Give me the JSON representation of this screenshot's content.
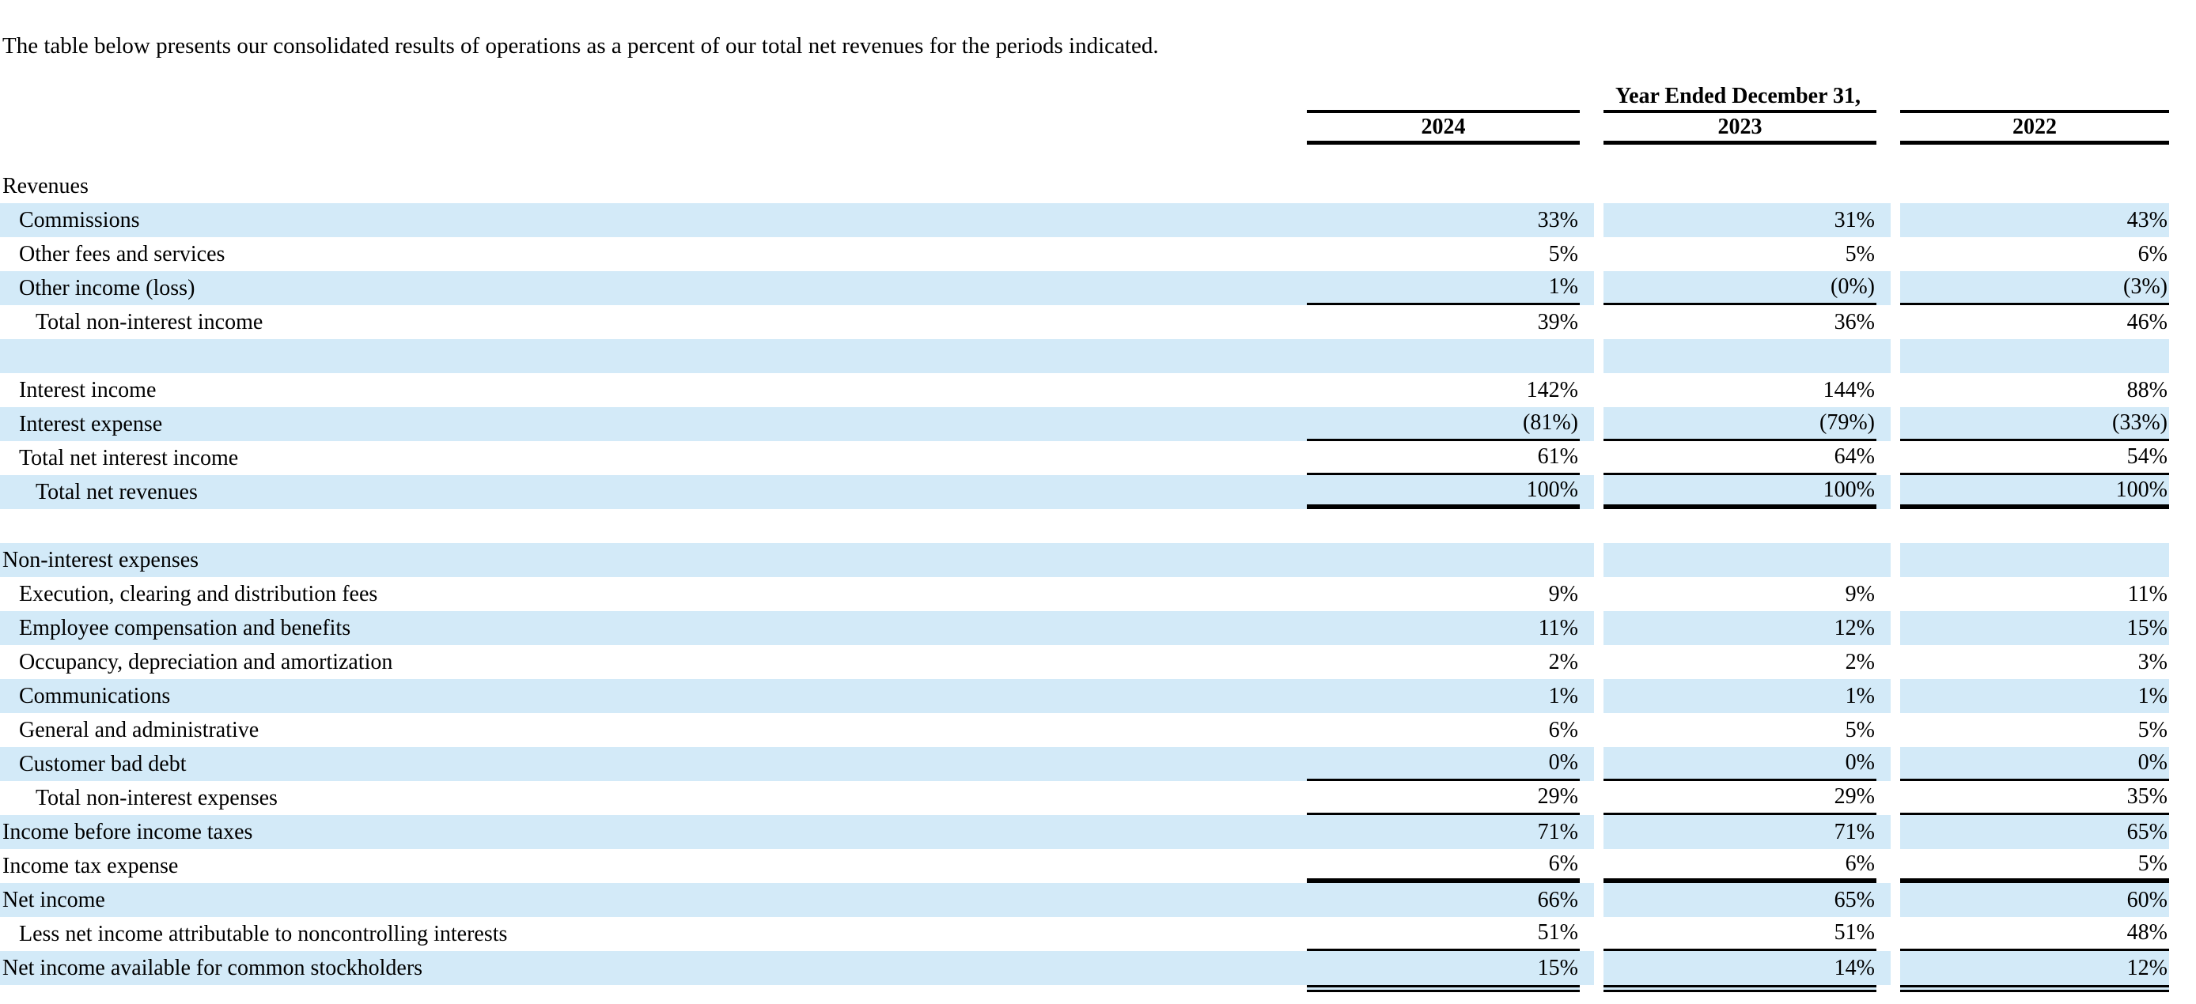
{
  "intro": "The table below presents our consolidated results of operations as a percent of our total net revenues for the periods indicated.",
  "colors": {
    "row_shade": "#d3eaf8",
    "rule": "#000000"
  },
  "table": {
    "header": {
      "title": "Year Ended December 31,",
      "years": [
        "2024",
        "2023",
        "2022"
      ]
    },
    "rows": [
      {
        "label": "Revenues",
        "indent": 0,
        "shaded": false,
        "values": [
          "",
          "",
          ""
        ],
        "border": "none"
      },
      {
        "label": "Commissions",
        "indent": 1,
        "shaded": true,
        "values": [
          "33%",
          "31%",
          "43%"
        ],
        "border": "none"
      },
      {
        "label": "Other fees and services",
        "indent": 1,
        "shaded": false,
        "values": [
          "5%",
          "5%",
          "6%"
        ],
        "border": "none"
      },
      {
        "label": "Other income (loss)",
        "indent": 1,
        "shaded": true,
        "values": [
          "1%",
          "(0%)",
          "(3%)"
        ],
        "border": "thin"
      },
      {
        "label": "Total non-interest income",
        "indent": 2,
        "shaded": false,
        "values": [
          "39%",
          "36%",
          "46%"
        ],
        "border": "none"
      },
      {
        "label": "",
        "indent": 0,
        "shaded": true,
        "values": [
          "",
          "",
          ""
        ],
        "border": "none"
      },
      {
        "label": "Interest income",
        "indent": 1,
        "shaded": false,
        "values": [
          "142%",
          "144%",
          "88%"
        ],
        "border": "none"
      },
      {
        "label": "Interest expense",
        "indent": 1,
        "shaded": true,
        "values": [
          "(81%)",
          "(79%)",
          "(33%)"
        ],
        "border": "thin"
      },
      {
        "label": "Total net interest income",
        "indent": 1,
        "shaded": false,
        "values": [
          "61%",
          "64%",
          "54%"
        ],
        "border": "thin"
      },
      {
        "label": "Total net revenues",
        "indent": 2,
        "shaded": true,
        "values": [
          "100%",
          "100%",
          "100%"
        ],
        "border": "thick"
      },
      {
        "label": "",
        "indent": 0,
        "shaded": false,
        "values": [
          "",
          "",
          ""
        ],
        "border": "none"
      },
      {
        "label": "Non-interest expenses",
        "indent": 0,
        "shaded": true,
        "values": [
          "",
          "",
          ""
        ],
        "border": "none"
      },
      {
        "label": "Execution, clearing and distribution fees",
        "indent": 1,
        "shaded": false,
        "values": [
          "9%",
          "9%",
          "11%"
        ],
        "border": "none"
      },
      {
        "label": "Employee compensation and benefits",
        "indent": 1,
        "shaded": true,
        "values": [
          "11%",
          "12%",
          "15%"
        ],
        "border": "none"
      },
      {
        "label": "Occupancy, depreciation and amortization",
        "indent": 1,
        "shaded": false,
        "values": [
          "2%",
          "2%",
          "3%"
        ],
        "border": "none"
      },
      {
        "label": "Communications",
        "indent": 1,
        "shaded": true,
        "values": [
          "1%",
          "1%",
          "1%"
        ],
        "border": "none"
      },
      {
        "label": "General and administrative",
        "indent": 1,
        "shaded": false,
        "values": [
          "6%",
          "5%",
          "5%"
        ],
        "border": "none"
      },
      {
        "label": "Customer bad debt",
        "indent": 1,
        "shaded": true,
        "values": [
          "0%",
          "0%",
          "0%"
        ],
        "border": "thin"
      },
      {
        "label": "Total non-interest expenses",
        "indent": 2,
        "shaded": false,
        "values": [
          "29%",
          "29%",
          "35%"
        ],
        "border": "thin"
      },
      {
        "label": "Income before income taxes",
        "indent": 0,
        "shaded": true,
        "values": [
          "71%",
          "71%",
          "65%"
        ],
        "border": "none"
      },
      {
        "label": "Income tax expense",
        "indent": 0,
        "shaded": false,
        "values": [
          "6%",
          "6%",
          "5%"
        ],
        "border": "thick"
      },
      {
        "label": "Net income",
        "indent": 0,
        "shaded": true,
        "values": [
          "66%",
          "65%",
          "60%"
        ],
        "border": "none"
      },
      {
        "label": "Less net income attributable to noncontrolling interests",
        "indent": 1,
        "shaded": false,
        "values": [
          "51%",
          "51%",
          "48%"
        ],
        "border": "thin"
      },
      {
        "label": "Net income available for common stockholders",
        "indent": 0,
        "shaded": true,
        "values": [
          "15%",
          "14%",
          "12%"
        ],
        "border": "double"
      }
    ]
  }
}
